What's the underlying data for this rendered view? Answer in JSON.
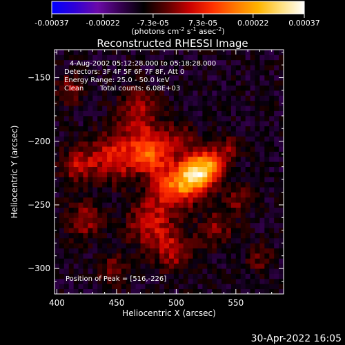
{
  "colorbar": {
    "min": -0.00037,
    "max": 0.00037,
    "tick_values": [
      -0.00037,
      -0.00022,
      -7.3e-05,
      7.3e-05,
      0.00022,
      0.00037
    ],
    "tick_labels": [
      "-0.00037",
      "-0.00022",
      "-7.3e-05",
      "7.3e-05",
      "0.00022",
      "0.00037"
    ],
    "units": {
      "base": "(photons cm",
      "exp1": "-2",
      "mid1": " s",
      "exp2": "-1",
      "mid2": " asec",
      "exp3": "-2",
      "end": ")"
    },
    "colormap": [
      "#0000ff",
      "#2f00d8",
      "#6b0aa8",
      "#350050",
      "#000000",
      "#5a0000",
      "#c80000",
      "#ff3000",
      "#ff7800",
      "#ffb400",
      "#ffe080",
      "#ffffff"
    ]
  },
  "chart_data": {
    "type": "heatmap",
    "title": "Reconstructed RHESSI Image",
    "xlabel": "Heliocentric X (arcsec)",
    "ylabel": "Heliocentric Y (arcsec)",
    "xlim": [
      398,
      590
    ],
    "ylim": [
      -320,
      -128
    ],
    "xticks": [
      400,
      450,
      500,
      550
    ],
    "yticks": [
      -150,
      -200,
      -250,
      -300
    ],
    "clim": [
      -0.00037,
      0.00037
    ],
    "pixel_size_arcsec": 4,
    "sources": [
      {
        "x": 516,
        "y": -226,
        "sigma": 10,
        "amp": 0.00037
      },
      {
        "x": 498,
        "y": -236,
        "sigma": 12,
        "amp": 0.00023
      },
      {
        "x": 530,
        "y": -218,
        "sigma": 9,
        "amp": 0.00021
      },
      {
        "x": 478,
        "y": -208,
        "sigma": 12,
        "amp": 0.00025
      },
      {
        "x": 448,
        "y": -212,
        "sigma": 13,
        "amp": 0.00018
      },
      {
        "x": 468,
        "y": -176,
        "sigma": 12,
        "amp": 0.00014
      },
      {
        "x": 503,
        "y": -196,
        "sigma": 8,
        "amp": 0.00011
      },
      {
        "x": 418,
        "y": -218,
        "sigma": 10,
        "amp": 0.00015
      },
      {
        "x": 423,
        "y": -262,
        "sigma": 10,
        "amp": 0.00013
      },
      {
        "x": 412,
        "y": -158,
        "sigma": 8,
        "amp": 0.00011
      },
      {
        "x": 478,
        "y": -264,
        "sigma": 13,
        "amp": 0.00016
      },
      {
        "x": 498,
        "y": -286,
        "sigma": 11,
        "amp": 0.00014
      },
      {
        "x": 533,
        "y": -268,
        "sigma": 10,
        "amp": 0.00011
      },
      {
        "x": 552,
        "y": -246,
        "sigma": 9,
        "amp": 9e-05
      },
      {
        "x": 448,
        "y": -302,
        "sigma": 9,
        "amp": 0.0001
      },
      {
        "x": 570,
        "y": -292,
        "sigma": 8,
        "amp": 8e-05
      },
      {
        "x": 545,
        "y": -205,
        "sigma": 7,
        "amp": 9e-05
      }
    ],
    "annotations": {
      "time_range": "4-Aug-2002 05:12:28.000 to 05:18:28.000",
      "detectors": "Detectors: 3F 4F 5F 6F 7F 8F, Att 0",
      "energy": "Energy Range: 25.0 - 50.0 keV",
      "clean": "Clean",
      "counts": "Total counts: 6.08E+03",
      "peak": "Position of Peak = [516,-226]"
    }
  },
  "footer": {
    "timestamp": "30-Apr-2022 16:05"
  }
}
